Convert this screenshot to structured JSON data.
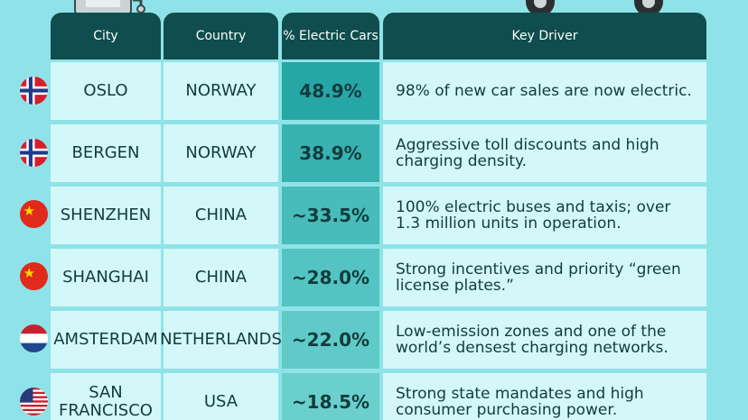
{
  "table": {
    "header": [
      "City",
      "Country",
      "% Electric Cars",
      "Key Driver"
    ],
    "rows": [
      [
        "OSLO",
        "NORWAY",
        "48.9%",
        "98% of new car sales are now electric."
      ],
      [
        "BERGEN",
        "NORWAY",
        "38.9%",
        "Aggressive toll discounts and high charging density."
      ],
      [
        "SHENZHEN",
        "CHINA",
        "~33.5%",
        "100% electric buses and taxis; over 1.3 million units in operation."
      ],
      [
        "SHANGHAI",
        "CHINA",
        "~28.0%",
        "Strong incentives and priority “green license plates.”"
      ],
      [
        "AMSTERDAM",
        "NETHERLANDS",
        "~22.0%",
        "Low-emission zones and one of the world’s densest charging networks."
      ],
      [
        "SAN FRANCISCO",
        "USA",
        "~18.5%",
        "Strong state mandates and high consumer purchasing power."
      ]
    ]
  }
}
